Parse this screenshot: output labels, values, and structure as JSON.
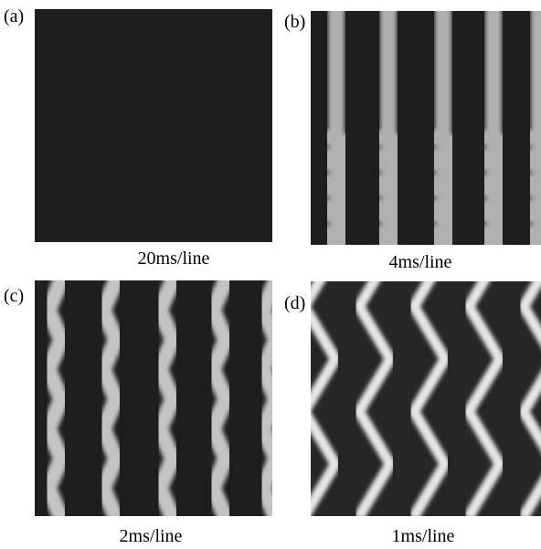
{
  "panels": [
    {
      "label": "(a)",
      "caption": "20ms/line"
    },
    {
      "label": "(b)",
      "caption": "4ms/line"
    },
    {
      "label": "(c)",
      "caption": "2ms/line"
    },
    {
      "label": "(d)",
      "caption": "1ms/line"
    }
  ]
}
